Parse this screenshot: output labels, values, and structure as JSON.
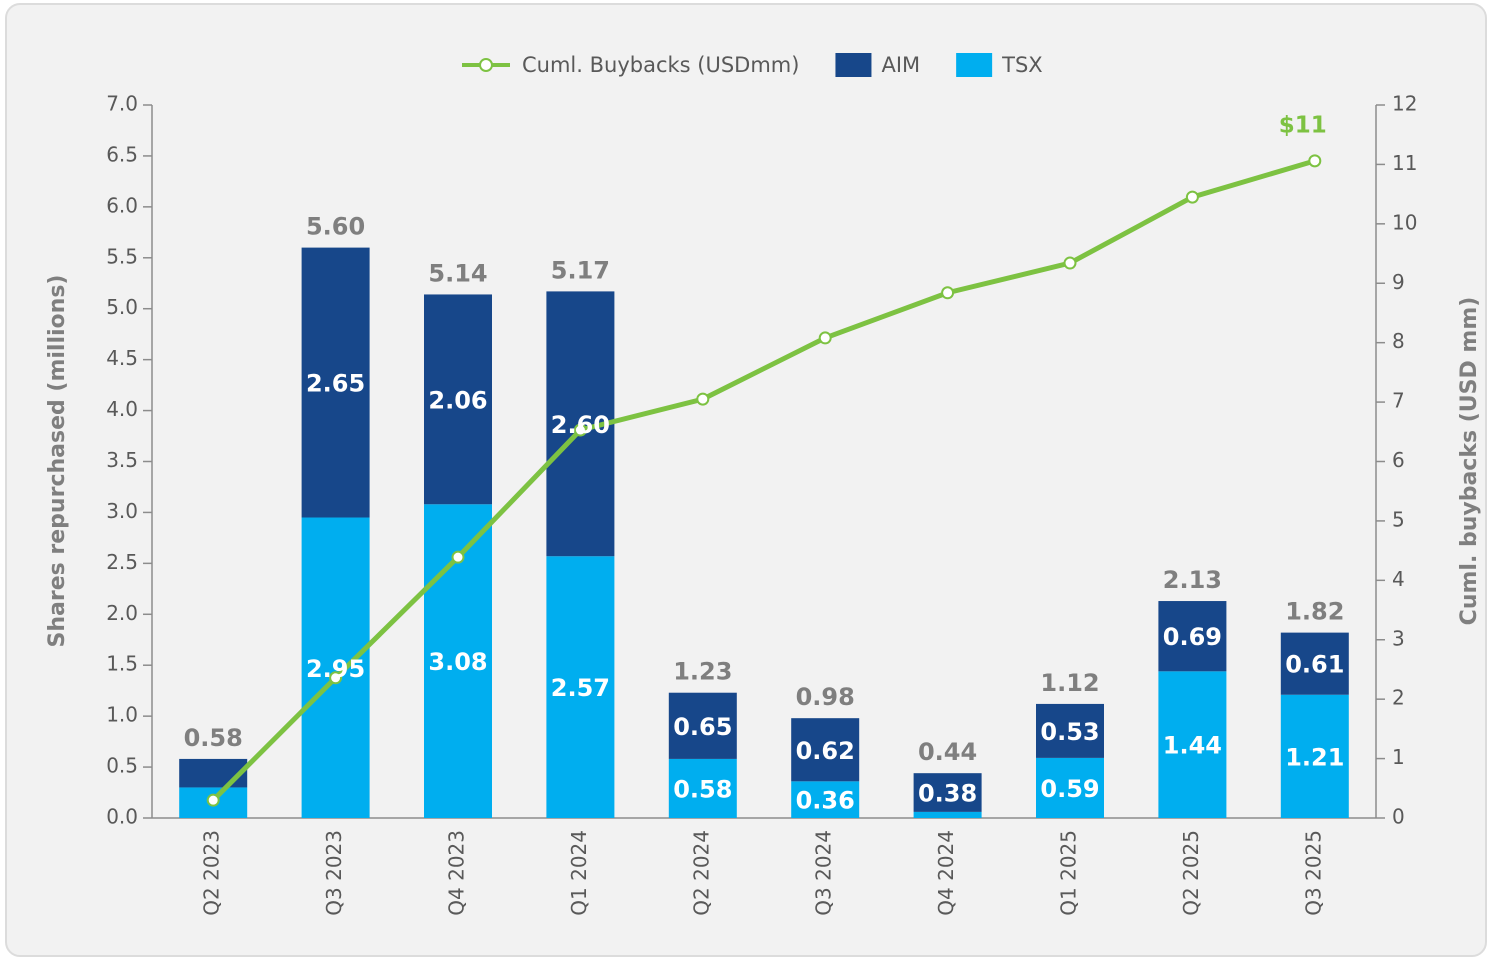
{
  "chart_data": {
    "type": "bar",
    "stacked": true,
    "categories": [
      "Q2 2023",
      "Q3 2023",
      "Q4 2023",
      "Q1 2024",
      "Q2 2024",
      "Q3 2024",
      "Q4 2024",
      "Q1 2025",
      "Q2 2025",
      "Q3 2025"
    ],
    "series": [
      {
        "name": "TSX",
        "type": "bar",
        "color": "#00aeef",
        "values": [
          0.3,
          2.95,
          3.08,
          2.57,
          0.58,
          0.36,
          0.06,
          0.59,
          1.44,
          1.21
        ],
        "value_labels": [
          null,
          "2.95",
          "3.08",
          "2.57",
          "0.58",
          "0.36",
          null,
          "0.59",
          "1.44",
          "1.21"
        ]
      },
      {
        "name": "AIM",
        "type": "bar",
        "color": "#17478a",
        "values": [
          0.28,
          2.65,
          2.06,
          2.6,
          0.65,
          0.62,
          0.38,
          0.53,
          0.69,
          0.61
        ],
        "value_labels": [
          null,
          "2.65",
          "2.06",
          "2.60",
          "0.65",
          "0.62",
          "0.38",
          "0.53",
          "0.69",
          "0.61"
        ]
      },
      {
        "name": "Cuml. Buybacks (USDmm)",
        "type": "line",
        "axis": "y2",
        "color": "#7dc242",
        "values": [
          0.3,
          2.36,
          4.39,
          6.53,
          7.05,
          8.08,
          8.84,
          9.34,
          10.45,
          11.06
        ]
      }
    ],
    "totals": [
      0.58,
      5.6,
      5.14,
      5.17,
      1.23,
      0.98,
      0.44,
      1.12,
      2.13,
      1.82
    ],
    "total_labels": [
      "0.58",
      "5.60",
      "5.14",
      "5.17",
      "1.23",
      "0.98",
      "0.44",
      "1.12",
      "2.13",
      "1.82"
    ],
    "annotation": "$11",
    "y_label": "Shares repurchased (millions)",
    "y2_label": "Cuml. buybacks (USD mm)",
    "ylim": [
      0,
      7
    ],
    "yticks": [
      {
        "value": 0,
        "label": "0.0"
      },
      0.5,
      {
        "value": 1,
        "label": "1.0"
      },
      1.5,
      {
        "value": 2,
        "label": "2.0"
      },
      2.5,
      {
        "value": 3,
        "label": "3.0"
      },
      3.5,
      {
        "value": 4,
        "label": "4.0"
      },
      4.5,
      {
        "value": 5,
        "label": "5.0"
      },
      5.5,
      {
        "value": 6,
        "label": "6.0"
      },
      6.5,
      {
        "value": 7,
        "label": "7.0"
      }
    ],
    "y2lim": [
      0,
      12
    ],
    "y2ticks": [
      0,
      1,
      2,
      3,
      4,
      5,
      6,
      7,
      8,
      9,
      10,
      11,
      12
    ],
    "grid": false,
    "legend": "top"
  }
}
